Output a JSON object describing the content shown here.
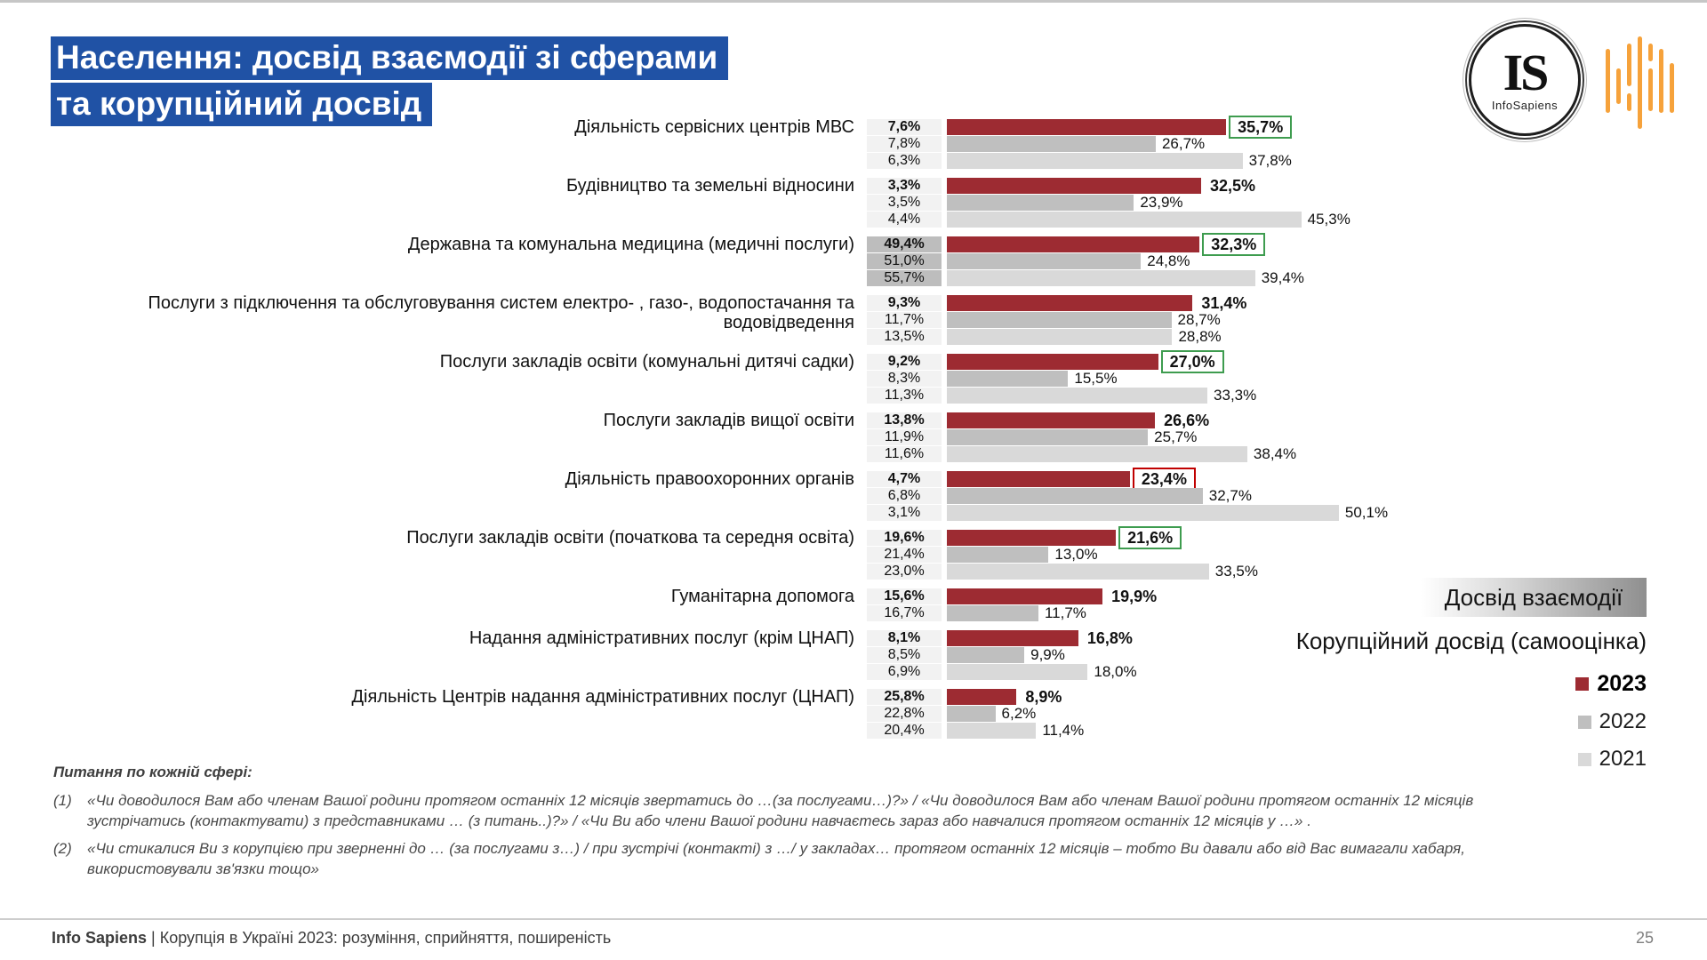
{
  "title": {
    "line1": "Населення: досвід взаємодії зі сферами",
    "line2": "та корупційний досвід"
  },
  "logos": {
    "is_initials": "IS",
    "is_name": "InfoSapiens"
  },
  "side_labels": {
    "interaction": "Досвід взаємодії",
    "corruption": "Корупційний досвід (самооцінка)"
  },
  "legend": {
    "items": [
      {
        "label": "2023",
        "color": "#9D2B32",
        "bold": true
      },
      {
        "label": "2022",
        "color": "#BFBFBF",
        "bold": false
      },
      {
        "label": "2021",
        "color": "#D9D9D9",
        "bold": false
      }
    ]
  },
  "footnotes": {
    "heading": "Питання по кожній сфері:",
    "items": [
      {
        "num": "(1)",
        "text": "«Чи доводилося Вам або членам Вашої родини протягом останніх 12 місяців звертатись до …(за послугами…)?» / «Чи доводилося Вам або членам Вашої родини протягом останніх 12 місяців зустрічатись (контактувати) з представниками … (з питань..)?» / «Чи Ви або члени Вашої родини навчаєтесь зараз або навчалися протягом останніх 12 місяців у …» ."
      },
      {
        "num": "(2)",
        "text": "«Чи стикалися Ви з корупцією при зверненні до … (за послугами з…) / при зустрічі (контакті) з …/ у закладах… протягом останніх 12 місяців – тобто Ви давали або від Вас вимагали хабаря, використовували зв'язки тощо»"
      }
    ]
  },
  "footer": {
    "brand": "Info Sapiens",
    "divider": "|",
    "text": "Корупція в Україні 2023: розуміння, сприйняття, поширеність",
    "page": "25"
  },
  "chart_data": {
    "type": "bar",
    "orientation": "horizontal",
    "series": [
      "2023",
      "2022",
      "2021"
    ],
    "colors": {
      "2023": "#9D2B32",
      "2022": "#BFBFBF",
      "2021": "#D9D9D9"
    },
    "value_suffix": "%",
    "xlim": [
      0,
      56
    ],
    "left_column_title": "Досвід взаємодії",
    "bars_title": "Корупційний досвід (самооцінка)",
    "groups": [
      {
        "category": "Діяльність сервісних центрів МВС",
        "interaction": [
          "7,6%",
          "7,8%",
          "6,3%"
        ],
        "interaction_highlight": false,
        "values": [
          35.7,
          26.7,
          37.8
        ],
        "labels": [
          "35,7%",
          "26,7%",
          "37,8%"
        ],
        "box": "green"
      },
      {
        "category": "Будівництво та земельні відносини",
        "interaction": [
          "3,3%",
          "3,5%",
          "4,4%"
        ],
        "interaction_highlight": false,
        "values": [
          32.5,
          23.9,
          45.3
        ],
        "labels": [
          "32,5%",
          "23,9%",
          "45,3%"
        ],
        "box": "none"
      },
      {
        "category": "Державна та комунальна медицина (медичні послуги)",
        "interaction": [
          "49,4%",
          "51,0%",
          "55,7%"
        ],
        "interaction_highlight": true,
        "values": [
          32.3,
          24.8,
          39.4
        ],
        "labels": [
          "32,3%",
          "24,8%",
          "39,4%"
        ],
        "box": "green"
      },
      {
        "category": "Послуги з підключення та обслуговування систем електро- , газо-, водопостачання та водовідведення",
        "interaction": [
          "9,3%",
          "11,7%",
          "13,5%"
        ],
        "interaction_highlight": false,
        "values": [
          31.4,
          28.7,
          28.8
        ],
        "labels": [
          "31,4%",
          "28,7%",
          "28,8%"
        ],
        "box": "none"
      },
      {
        "category": "Послуги закладів освіти (комунальні дитячі садки)",
        "interaction": [
          "9,2%",
          "8,3%",
          "11,3%"
        ],
        "interaction_highlight": false,
        "values": [
          27.0,
          15.5,
          33.3
        ],
        "labels": [
          "27,0%",
          "15,5%",
          "33,3%"
        ],
        "box": "green"
      },
      {
        "category": "Послуги закладів вищої освіти",
        "interaction": [
          "13,8%",
          "11,9%",
          "11,6%"
        ],
        "interaction_highlight": false,
        "values": [
          26.6,
          25.7,
          38.4
        ],
        "labels": [
          "26,6%",
          "25,7%",
          "38,4%"
        ],
        "box": "none"
      },
      {
        "category": "Діяльність правоохоронних органів",
        "interaction": [
          "4,7%",
          "6,8%",
          "3,1%"
        ],
        "interaction_highlight": false,
        "values": [
          23.4,
          32.7,
          50.1
        ],
        "labels": [
          "23,4%",
          "32,7%",
          "50,1%"
        ],
        "box": "red"
      },
      {
        "category": "Послуги закладів освіти (початкова та середня освіта)",
        "interaction": [
          "19,6%",
          "21,4%",
          "23,0%"
        ],
        "interaction_highlight": false,
        "values": [
          21.6,
          13.0,
          33.5
        ],
        "labels": [
          "21,6%",
          "13,0%",
          "33,5%"
        ],
        "box": "green"
      },
      {
        "category": "Гуманітарна допомога",
        "interaction": [
          "15,6%",
          "16,7%"
        ],
        "interaction_highlight": false,
        "values": [
          19.9,
          11.7
        ],
        "labels": [
          "19,9%",
          "11,7%"
        ],
        "box": "none"
      },
      {
        "category": "Надання адміністративних послуг  (крім ЦНАП)",
        "interaction": [
          "8,1%",
          "8,5%",
          "6,9%"
        ],
        "interaction_highlight": false,
        "values": [
          16.8,
          9.9,
          18.0
        ],
        "labels": [
          "16,8%",
          "9,9%",
          "18,0%"
        ],
        "box": "none"
      },
      {
        "category": "Діяльність Центрів надання адміністративних послуг (ЦНАП)",
        "interaction": [
          "25,8%",
          "22,8%",
          "20,4%"
        ],
        "interaction_highlight": false,
        "values": [
          8.9,
          6.2,
          11.4
        ],
        "labels": [
          "8,9%",
          "6,2%",
          "11,4%"
        ],
        "box": "none"
      }
    ]
  }
}
